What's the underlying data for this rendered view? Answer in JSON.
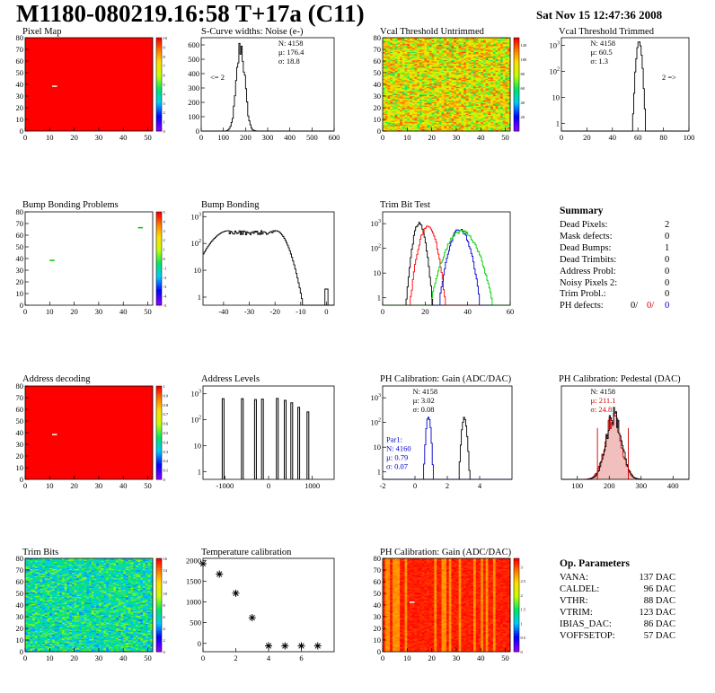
{
  "header": {
    "title": "M1180-080219.16:58 T+17a (C11)",
    "date": "Sat Nov 15 12:47:36 2008"
  },
  "palette": {
    "red": "#ff0000",
    "black": "#000000",
    "blue": "#0000cc",
    "green": "#00cc00"
  },
  "chart_data": [
    {
      "id": "pixel_map",
      "type": "heatmap",
      "title": "Pixel Map",
      "xlim": [
        0,
        52
      ],
      "ylim": [
        0,
        80
      ],
      "xticks": [
        0,
        10,
        20,
        30,
        40,
        50
      ],
      "yticks": [
        0,
        10,
        20,
        30,
        40,
        50,
        60,
        70,
        80
      ],
      "fill": "max",
      "zlim": [
        0,
        10
      ],
      "zticks": [
        0,
        1,
        2,
        3,
        4,
        5,
        6,
        7,
        8,
        9,
        10
      ],
      "cells": [
        {
          "x": 11,
          "y": 38,
          "z": "white"
        }
      ]
    },
    {
      "id": "scurve",
      "type": "histogram",
      "title": "S-Curve widths: Noise (e-)",
      "xlim": [
        0,
        600
      ],
      "ylim": [
        0,
        650
      ],
      "xticks": [
        0,
        100,
        200,
        300,
        400,
        500,
        600
      ],
      "yticks": [
        0,
        100,
        200,
        300,
        400,
        500,
        600
      ],
      "stats": [
        "N: 4158",
        "µ: 176.4",
        "σ: 18.8"
      ],
      "annotation": "<= 2",
      "series": [
        {
          "color": "#000000",
          "shape": "gauss",
          "mu": 176,
          "sigma": 19,
          "peak": 590,
          "min": 0
        }
      ]
    },
    {
      "id": "vcal_untrimmed",
      "type": "heatmap",
      "title": "Vcal Threshold Untrimmed",
      "xlim": [
        0,
        52
      ],
      "ylim": [
        0,
        80
      ],
      "xticks": [
        0,
        10,
        20,
        30,
        40,
        50
      ],
      "yticks": [
        0,
        10,
        20,
        30,
        40,
        50,
        60,
        70,
        80
      ],
      "fill": "random",
      "zlim": [
        0,
        130
      ],
      "zticks": [
        20,
        40,
        60,
        80,
        100,
        120
      ],
      "zmin": 60,
      "zmax": 120
    },
    {
      "id": "vcal_trimmed",
      "type": "histogram",
      "title": "Vcal Threshold Trimmed",
      "xlim": [
        0,
        100
      ],
      "ylim": [
        0.5,
        2000
      ],
      "log": true,
      "xticks": [
        0,
        20,
        40,
        60,
        80,
        100
      ],
      "yticks": [
        1,
        10,
        100,
        1000
      ],
      "stats": [
        "N: 4158",
        "µ: 60.5",
        "σ:  1.3"
      ],
      "annotation": "2 =>",
      "series": [
        {
          "color": "#000000",
          "shape": "gauss",
          "mu": 60.5,
          "sigma": 1.3,
          "peak": 1300,
          "min": 0.5
        }
      ]
    },
    {
      "id": "bump_problems",
      "type": "heatmap",
      "title": "Bump Bonding Problems",
      "xlim": [
        0,
        52
      ],
      "ylim": [
        0,
        80
      ],
      "xticks": [
        0,
        10,
        20,
        30,
        40,
        50
      ],
      "yticks": [
        0,
        10,
        20,
        30,
        40,
        50,
        60,
        70,
        80
      ],
      "fill": "min",
      "zlim": [
        -5,
        5
      ],
      "zticks": [
        -5,
        -4,
        -3,
        -2,
        -1,
        0,
        1,
        2,
        3,
        4,
        5
      ],
      "cells": [
        {
          "x": 10,
          "y": 38,
          "z": "#00cc00"
        },
        {
          "x": 46,
          "y": 66,
          "z": "#00cc00"
        }
      ]
    },
    {
      "id": "bump_bonding",
      "type": "histogram",
      "title": "Bump Bonding",
      "xlim": [
        -48,
        3
      ],
      "ylim": [
        0.5,
        1500
      ],
      "log": true,
      "xticks": [
        -40,
        -30,
        -20,
        -10,
        0
      ],
      "yticks": [
        1,
        10,
        100,
        1000
      ],
      "series": [
        {
          "color": "#000000",
          "shape": "plateau",
          "lo": -38,
          "hi": -20,
          "peak": 300,
          "sigma": 5,
          "min": 0.5,
          "spike": [
            0,
            2
          ]
        }
      ]
    },
    {
      "id": "trim_bit_test",
      "type": "histogram",
      "title": "Trim Bit Test",
      "xlim": [
        0,
        60
      ],
      "ylim": [
        0.5,
        3000
      ],
      "log": true,
      "xticks": [
        0,
        20,
        40,
        60
      ],
      "yticks": [
        1,
        10,
        100,
        1000
      ],
      "series": [
        {
          "color": "#000000",
          "shape": "gauss",
          "mu": 17,
          "sigma": 1.6,
          "peak": 1000,
          "min": 0.5
        },
        {
          "color": "#ff0000",
          "shape": "gauss",
          "mu": 21,
          "sigma": 2.2,
          "peak": 800,
          "min": 0.5
        },
        {
          "color": "#0000cc",
          "shape": "gauss",
          "mu": 36,
          "sigma": 2.6,
          "peak": 600,
          "min": 0.5
        },
        {
          "color": "#00cc00",
          "shape": "gauss",
          "mu": 37,
          "sigma": 4,
          "peak": 500,
          "min": 0.5
        }
      ]
    },
    {
      "id": "address_decoding",
      "type": "heatmap",
      "title": "Address decoding",
      "xlim": [
        0,
        52
      ],
      "ylim": [
        0,
        80
      ],
      "xticks": [
        0,
        10,
        20,
        30,
        40,
        50
      ],
      "yticks": [
        0,
        10,
        20,
        30,
        40,
        50,
        60,
        70,
        80
      ],
      "fill": "max",
      "zlim": [
        0,
        1
      ],
      "zticks": [
        0,
        0.1,
        0.2,
        0.3,
        0.4,
        0.5,
        0.6,
        0.7,
        0.8,
        0.9,
        1
      ],
      "cells": [
        {
          "x": 11,
          "y": 38,
          "z": "white"
        }
      ]
    },
    {
      "id": "address_levels",
      "type": "spikes",
      "title": "Address Levels",
      "xlim": [
        -1500,
        1500
      ],
      "ylim": [
        0.5,
        2000
      ],
      "log": true,
      "xticks": [
        -1000,
        0,
        1000
      ],
      "yticks": [
        1,
        10,
        100,
        1000
      ],
      "series": [
        {
          "color": "#000000",
          "x": [
            -1040,
            -600,
            -300,
            -140,
            200,
            380,
            530,
            690,
            900
          ],
          "y": [
            650,
            650,
            600,
            620,
            660,
            560,
            450,
            300,
            200
          ]
        }
      ]
    },
    {
      "id": "ph_gain",
      "type": "histogram",
      "title": "PH Calibration: Gain (ADC/DAC)",
      "xlim": [
        -2,
        6
      ],
      "ylim": [
        0.5,
        3000
      ],
      "log": true,
      "xticks": [
        -2,
        0,
        2,
        4
      ],
      "yticks": [
        1,
        10,
        100,
        1000
      ],
      "stats": [
        "N: 4158",
        "µ: 3.02",
        "σ: 0.08"
      ],
      "stats2": {
        "color": "#0000cc",
        "lines": [
          "Par1:",
          "N: 4160",
          "µ: 0.79",
          "σ: 0.07"
        ]
      },
      "series": [
        {
          "color": "#000000",
          "shape": "gauss",
          "mu": 3.02,
          "sigma": 0.1,
          "peak": 150,
          "min": 0.5
        },
        {
          "color": "#0000cc",
          "shape": "gauss",
          "mu": 0.8,
          "sigma": 0.09,
          "peak": 170,
          "min": 0.5
        }
      ]
    },
    {
      "id": "ph_pedestal",
      "type": "histogram",
      "title": "PH Calibration: Pedestal (DAC)",
      "xlim": [
        50,
        450
      ],
      "ylim": [
        0,
        230
      ],
      "xticks": [
        100,
        200,
        300,
        400
      ],
      "yticks": [],
      "stats": [
        "N: 4158"
      ],
      "stats_red": [
        "µ: 211.1",
        "σ: 24.8"
      ],
      "vlines": [
        163,
        260
      ],
      "series": [
        {
          "color": "#cc0000",
          "shape": "gauss",
          "mu": 211,
          "sigma": 24.8,
          "peak": 150,
          "min": 0,
          "fillpat": true
        },
        {
          "color": "#000000",
          "shape": "gauss",
          "mu": 213,
          "sigma": 24,
          "peak": 160,
          "min": 0
        }
      ]
    },
    {
      "id": "trim_bits",
      "type": "heatmap",
      "title": "Trim Bits",
      "xlim": [
        0,
        52
      ],
      "ylim": [
        0,
        80
      ],
      "xticks": [
        0,
        10,
        20,
        30,
        40,
        50
      ],
      "yticks": [
        0,
        10,
        20,
        30,
        40,
        50,
        60,
        70,
        80
      ],
      "fill": "random",
      "zlim": [
        0,
        16
      ],
      "zticks": [
        0,
        2,
        4,
        6,
        8,
        10,
        12,
        14,
        16
      ],
      "zmin": 4,
      "zmax": 9
    },
    {
      "id": "temperature",
      "type": "scatter",
      "title": "Temperature calibration",
      "xlim": [
        0,
        8
      ],
      "ylim": [
        -200,
        2050
      ],
      "xticks": [
        0,
        2,
        4,
        6
      ],
      "yticks": [
        0,
        500,
        1000,
        1500,
        2000
      ],
      "x": [
        0,
        1,
        2,
        3,
        4,
        5,
        6,
        7
      ],
      "y": [
        1920,
        1670,
        1210,
        620,
        -60,
        -60,
        -60,
        -60
      ]
    },
    {
      "id": "ph_gain_map",
      "type": "heatmap",
      "title": "PH Calibration: Gain (ADC/DAC)",
      "xlim": [
        0,
        52
      ],
      "ylim": [
        0,
        80
      ],
      "xticks": [
        0,
        10,
        20,
        30,
        40,
        50
      ],
      "yticks": [
        0,
        10,
        20,
        30,
        40,
        50,
        60,
        70,
        80
      ],
      "fill": "columns",
      "zlim": [
        0,
        3.3
      ],
      "zticks": [
        0,
        0.5,
        1,
        1.5,
        2,
        2.5,
        3
      ],
      "zmin": 2.9,
      "zmax": 3.3,
      "cells": [
        {
          "x": 11,
          "y": 42,
          "z": "white"
        }
      ]
    }
  ],
  "summary": {
    "title": "Summary",
    "rows": [
      {
        "label": "Dead Pixels:",
        "value": "2"
      },
      {
        "label": "Mask defects:",
        "value": "0"
      },
      {
        "label": "Dead Bumps:",
        "value": "1"
      },
      {
        "label": "Dead Trimbits:",
        "value": "0"
      },
      {
        "label": "Address Probl:",
        "value": "0"
      },
      {
        "label": "Noisy Pixels 2:",
        "value": "0"
      },
      {
        "label": "Trim Probl.:",
        "value": "0"
      }
    ],
    "ph_defects": {
      "label": "PH defects:",
      "v1": "0/",
      "v2": "0/",
      "v3": "0"
    }
  },
  "params": {
    "title": "Op. Parameters",
    "rows": [
      {
        "label": "VANA:",
        "value": "137 DAC"
      },
      {
        "label": "CALDEL:",
        "value": "96 DAC"
      },
      {
        "label": "VTHR:",
        "value": "88 DAC"
      },
      {
        "label": "VTRIM:",
        "value": "123 DAC"
      },
      {
        "label": "IBIAS_DAC:",
        "value": "86 DAC"
      },
      {
        "label": "VOFFSETOP:",
        "value": "57 DAC"
      }
    ]
  }
}
